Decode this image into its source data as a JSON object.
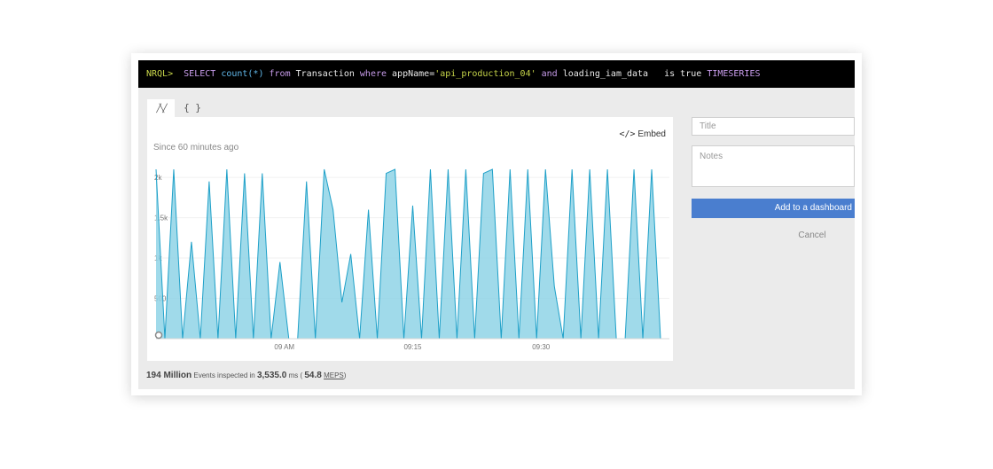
{
  "query": {
    "prompt": "NRQL>",
    "kw_select": "SELECT",
    "fn": "count(*)",
    "kw_from": "from",
    "table": "Transaction",
    "kw_where": "where",
    "attr": "appName=",
    "value": "'api_production_04'",
    "kw_and": "and",
    "attr2": "loading_iam_data",
    "cond": "is true",
    "kw_ts": "TIMESERIES"
  },
  "tabs": {
    "chart_icon": "╱╲╱",
    "json_label": "{ }"
  },
  "chart": {
    "embed_label": "Embed",
    "since": "Since 60 minutes ago"
  },
  "footer": {
    "events": "194 Million",
    "events_text": "Events inspected in",
    "ms_value": "3,535.0",
    "ms_text": "ms (",
    "meps_value": "54.8",
    "meps_label": "MEPS",
    "close": ")"
  },
  "side": {
    "title_placeholder": "Title",
    "notes_placeholder": "Notes",
    "add_button": "Add to a dashboard",
    "cancel_button": "Cancel"
  },
  "colors": {
    "accent": "#4a7ecf",
    "series_fill": "#8fd3e6",
    "series_line": "#1ea0c8"
  },
  "chart_data": {
    "type": "area",
    "title": "",
    "xlabel": "",
    "ylabel": "",
    "x_ticks": [
      "09 AM",
      "09:15",
      "09:30"
    ],
    "y_ticks": [
      "500",
      "1k",
      "1.5k",
      "2k"
    ],
    "ylim": [
      0,
      2100
    ],
    "xlim": [
      0,
      58
    ],
    "grid": true,
    "series": [
      {
        "x": [
          0,
          1,
          2,
          3,
          4,
          5,
          6,
          7,
          8,
          9,
          10,
          11,
          12,
          13,
          14,
          15,
          16,
          17,
          18,
          19,
          20,
          21,
          22,
          23,
          24,
          25,
          26,
          27,
          28,
          29,
          30,
          31,
          32,
          33,
          34,
          35,
          36,
          37,
          38,
          39,
          40,
          41,
          42,
          43,
          44,
          45,
          46,
          47,
          48,
          49,
          50,
          51,
          52,
          53,
          54,
          55,
          56,
          57,
          58
        ],
        "values": [
          2100,
          0,
          2100,
          0,
          1200,
          0,
          1950,
          0,
          2100,
          0,
          2050,
          0,
          2050,
          0,
          950,
          0,
          0,
          1950,
          0,
          2100,
          1600,
          450,
          1050,
          0,
          1600,
          0,
          2050,
          2100,
          0,
          1650,
          0,
          2100,
          0,
          2100,
          0,
          2100,
          0,
          2050,
          2100,
          0,
          2100,
          0,
          2100,
          0,
          2100,
          650,
          0,
          2100,
          0,
          2100,
          0,
          2100,
          0,
          0,
          2100,
          0,
          2100,
          0,
          0
        ]
      }
    ]
  }
}
